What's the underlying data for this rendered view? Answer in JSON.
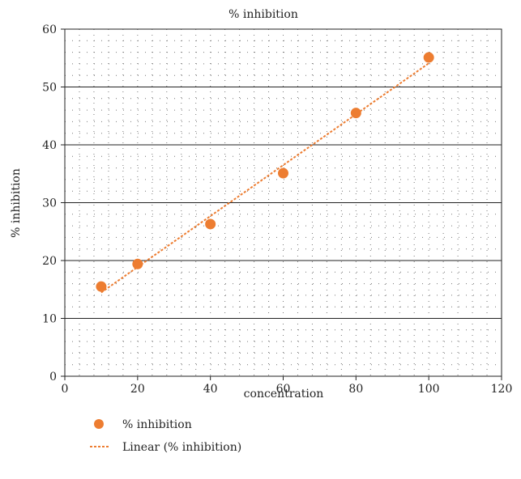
{
  "chart_data": {
    "type": "scatter",
    "title": "% inhibition",
    "xlabel": "concentration",
    "ylabel": "% inhibition",
    "xlim": [
      0,
      120
    ],
    "ylim": [
      0,
      60
    ],
    "x_ticks": [
      0,
      20,
      40,
      60,
      80,
      100,
      120
    ],
    "y_ticks": [
      0,
      10,
      20,
      30,
      40,
      50,
      60
    ],
    "grid": "major horizontal solid lines with minor dotted grid",
    "legend_position": "bottom-left",
    "series": [
      {
        "name": "% inhibition",
        "color": "#ed7d31",
        "x": [
          10,
          20,
          40,
          60,
          80,
          100
        ],
        "y": [
          15.5,
          19.4,
          26.3,
          35.1,
          45.5,
          55.1
        ]
      }
    ],
    "trendline": {
      "name": "Linear (% inhibition)",
      "type": "linear",
      "color": "#ed7d31"
    }
  }
}
